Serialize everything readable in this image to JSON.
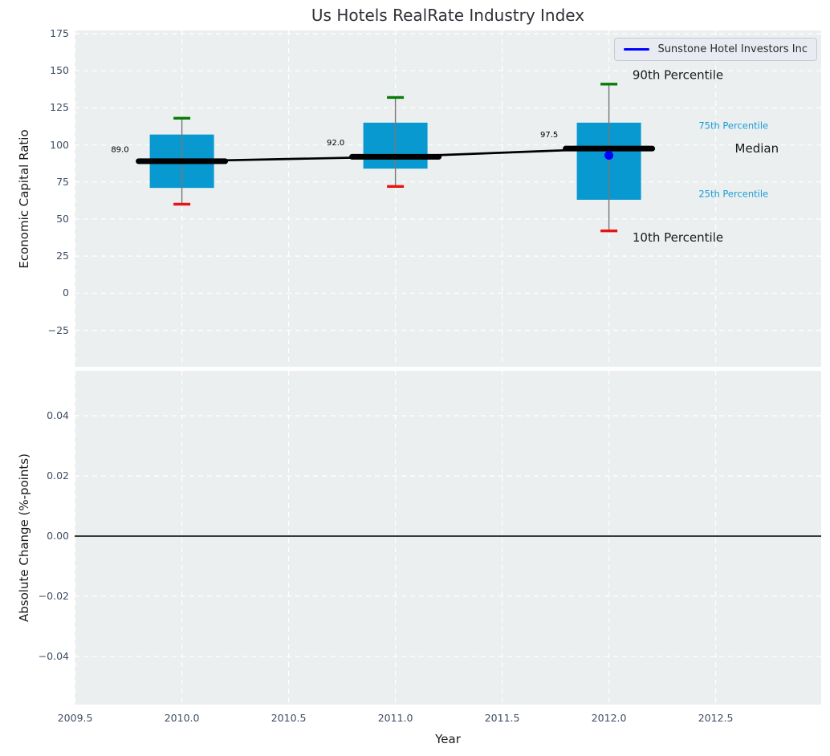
{
  "colors": {
    "axes_bg": "#ebeff0",
    "grid": "#ffffff",
    "box_fill": "#0999d1",
    "median_line": "#000000",
    "whisker": "#777777",
    "cap_high": "#077d07",
    "cap_low": "#e81414",
    "company_point": "#0000ff",
    "tick_label": "#3d4d63",
    "cyan_label": "#1b9cd3",
    "text": "#1a1a1a"
  },
  "chart_data": {
    "type": "box",
    "title": "Us Hotels RealRate Industry Index",
    "xlabel": "Year",
    "grid": true,
    "xlim": [
      2009.5,
      2013.0
    ],
    "x_ticks": [
      {
        "v": 2009.5,
        "label": "2009.5"
      },
      {
        "v": 2010.0,
        "label": "2010.0"
      },
      {
        "v": 2010.5,
        "label": "2010.5"
      },
      {
        "v": 2011.0,
        "label": "2011.0"
      },
      {
        "v": 2011.5,
        "label": "2011.5"
      },
      {
        "v": 2012.0,
        "label": "2012.0"
      },
      {
        "v": 2012.5,
        "label": "2012.5"
      }
    ],
    "legend": {
      "position": "upper right",
      "entries": [
        {
          "label": "Sunstone Hotel Investors Inc",
          "color": "#0000ff"
        }
      ]
    },
    "top_panel": {
      "ylabel": "Economic Capital Ratio",
      "ylim": [
        -49.5,
        177.2
      ],
      "y_ticks": [
        {
          "v": 175,
          "label": "175"
        },
        {
          "v": 150,
          "label": "150"
        },
        {
          "v": 125,
          "label": "125"
        },
        {
          "v": 100,
          "label": "100"
        },
        {
          "v": 75,
          "label": "75"
        },
        {
          "v": 50,
          "label": "50"
        },
        {
          "v": 25,
          "label": "25"
        },
        {
          "v": 0,
          "label": "0"
        },
        {
          "v": -25,
          "label": "−25"
        }
      ],
      "boxes": [
        {
          "year": 2010,
          "median": 89.0,
          "median_label": "89.0",
          "q1": 71,
          "q3": 107,
          "whisker_low": 60,
          "whisker_high": 118
        },
        {
          "year": 2011,
          "median": 92.0,
          "median_label": "92.0",
          "q1": 84,
          "q3": 115,
          "whisker_low": 72,
          "whisker_high": 132
        },
        {
          "year": 2012,
          "median": 97.5,
          "median_label": "97.5",
          "q1": 63,
          "q3": 115,
          "whisker_low": 42,
          "whisker_high": 141
        }
      ],
      "median_trend": [
        {
          "x": 2010,
          "y": 89.0
        },
        {
          "x": 2011,
          "y": 92.0
        },
        {
          "x": 2012,
          "y": 97.5
        }
      ],
      "company_series": {
        "name": "Sunstone Hotel Investors Inc",
        "points": [
          {
            "x": 2012,
            "y": 93
          }
        ]
      },
      "median_annotations": [
        {
          "text": "89.0",
          "x": 2009.71,
          "y": 96.5
        },
        {
          "text": "92.0",
          "x": 2010.72,
          "y": 101.0
        },
        {
          "text": "97.5",
          "x": 2011.72,
          "y": 106.5
        }
      ],
      "percentile_labels": [
        {
          "text": "90th Percentile",
          "x": 2012.11,
          "y": 147.0,
          "style": "large"
        },
        {
          "text": "75th Percentile",
          "x": 2012.42,
          "y": 113.0,
          "style": "small"
        },
        {
          "text": "Median",
          "x": 2012.59,
          "y": 97.5,
          "style": "large"
        },
        {
          "text": "25th Percentile",
          "x": 2012.42,
          "y": 67.0,
          "style": "small"
        },
        {
          "text": "10th Percentile",
          "x": 2012.11,
          "y": 37.5,
          "style": "large"
        }
      ]
    },
    "bottom_panel": {
      "ylabel": "Absolute Change (%-points)",
      "ylim": [
        -0.055,
        0.055
      ],
      "y_ticks": [
        {
          "v": 0.04,
          "label": "0.04"
        },
        {
          "v": 0.02,
          "label": "0.02"
        },
        {
          "v": 0.0,
          "label": "0.00"
        },
        {
          "v": -0.02,
          "label": "−0.02"
        },
        {
          "v": -0.04,
          "label": "−0.04"
        }
      ],
      "zero_line": 0.0
    }
  }
}
